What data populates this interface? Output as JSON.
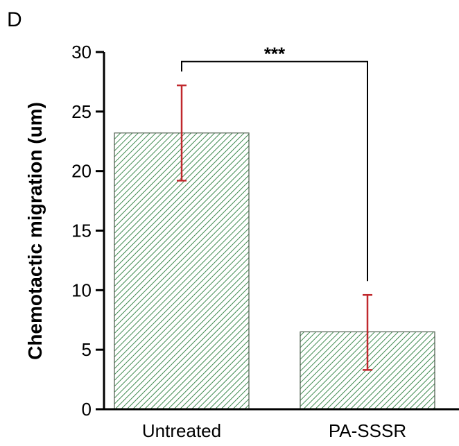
{
  "panel_label": "D",
  "colors": {
    "bar_fill": "#ffffff",
    "bar_hatch": "#3f8a50",
    "bar_outline": "#4a5a4a",
    "error_bar": "#c0282d",
    "axis": "#000000"
  },
  "chart_data": {
    "type": "bar",
    "categories": [
      "Untreated",
      "PA-SSSR"
    ],
    "values": [
      23.2,
      6.5
    ],
    "error_upper": [
      27.2,
      9.6
    ],
    "error_lower": [
      19.2,
      3.3
    ],
    "title": "",
    "xlabel": "",
    "ylabel": "Chemotactic migration (um)",
    "ylim": [
      0,
      30
    ],
    "yticks": [
      0,
      5,
      10,
      15,
      20,
      25,
      30
    ],
    "grid": false,
    "bar_pattern": "diagonal-hatch",
    "significance": {
      "between": [
        "Untreated",
        "PA-SSSR"
      ],
      "label": "***"
    }
  }
}
